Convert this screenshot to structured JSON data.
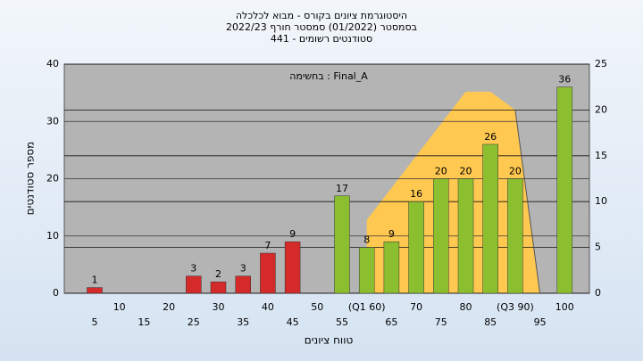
{
  "chart_data": {
    "type": "bar",
    "title": [
      "היסטוגרמת ציונים בקורס - מבוא לכלכלה",
      "בסמסטר  (01/2022)  סמסטר חורף 2022/23",
      "סטודנטים רשומים - 441"
    ],
    "annotation": "בחשימה : Final_A",
    "xlabel": "טווח ציונים",
    "ylabel": "מספר סטודנטים",
    "categories": [
      "5",
      "10",
      "15",
      "20",
      "25",
      "30",
      "35",
      "40",
      "45",
      "50",
      "55",
      "(Q1 60)",
      "65",
      "70",
      "75",
      "80",
      "85",
      "(Q3 90)",
      "95",
      "100"
    ],
    "values": [
      1,
      0,
      0,
      0,
      3,
      2,
      3,
      7,
      9,
      0,
      17,
      8,
      9,
      16,
      20,
      20,
      26,
      20,
      0,
      36
    ],
    "colors": [
      "#d42a2a",
      "#d42a2a",
      "#d42a2a",
      "#d42a2a",
      "#d42a2a",
      "#d42a2a",
      "#d42a2a",
      "#d42a2a",
      "#d42a2a",
      "#d42a2a",
      "#8cbf2f",
      "#8cbf2f",
      "#8cbf2f",
      "#8cbf2f",
      "#8cbf2f",
      "#8cbf2f",
      "#8cbf2f",
      "#8cbf2f",
      "#8cbf2f",
      "#8cbf2f"
    ],
    "area": {
      "axis": "y2",
      "color": "#ffc850",
      "x": [
        60,
        80,
        85,
        90,
        95
      ],
      "values": [
        8,
        22,
        22,
        20,
        0
      ]
    },
    "ylim": [
      0,
      40
    ],
    "yticks": [
      0,
      10,
      20,
      30,
      40
    ],
    "y2lim": [
      0,
      25
    ],
    "y2ticks": [
      0,
      5,
      10,
      15,
      20,
      25
    ],
    "grid": true
  }
}
